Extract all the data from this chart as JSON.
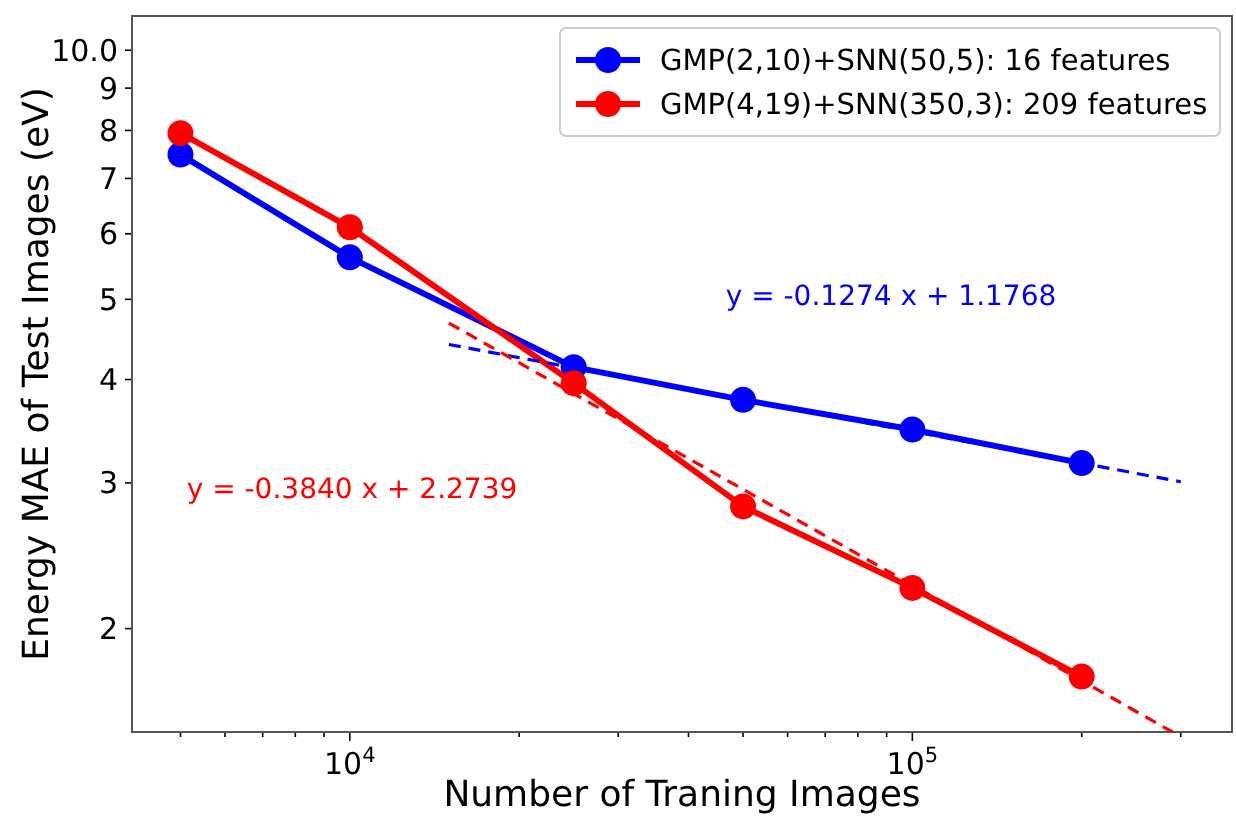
{
  "chart_data": {
    "type": "line",
    "xlabel": "Number of Traning Images",
    "ylabel": "Energy MAE of Test Images (eV)",
    "log": "xy",
    "grid": false,
    "legend": "top right",
    "marker": "circle",
    "line_style": "solid",
    "xlim": [
      4100,
      370000
    ],
    "ylim": [
      1.5,
      11.0
    ],
    "xticks": [
      {
        "value": 5000,
        "label": null
      },
      {
        "value": 6000,
        "label": null
      },
      {
        "value": 7000,
        "label": null
      },
      {
        "value": 8000,
        "label": null
      },
      {
        "value": 9000,
        "label": null
      },
      {
        "value": 10000,
        "label": "10$^{4}$"
      },
      {
        "value": 20000,
        "label": null
      },
      {
        "value": 30000,
        "label": null
      },
      {
        "value": 40000,
        "label": null
      },
      {
        "value": 50000,
        "label": null
      },
      {
        "value": 60000,
        "label": null
      },
      {
        "value": 70000,
        "label": null
      },
      {
        "value": 80000,
        "label": null
      },
      {
        "value": 90000,
        "label": null
      },
      {
        "value": 100000,
        "label": "10$^{5}$"
      },
      {
        "value": 200000,
        "label": null
      },
      {
        "value": 300000,
        "label": null
      }
    ],
    "yticks": [
      2,
      3,
      4,
      5,
      6,
      7,
      8,
      9,
      {
        "value": 10,
        "label": "10.0"
      }
    ],
    "series": [
      {
        "name": "GMP(2,10)+SNN(50,5): 16 features",
        "color": "#0000ff",
        "x": [
          5000,
          10000,
          25000,
          50000,
          100000,
          200000
        ],
        "values": [
          7.48,
          5.62,
          4.14,
          3.78,
          3.48,
          3.17
        ]
      },
      {
        "name": "GMP(4,19)+SNN(350,3): 209 features",
        "color": "#ff0000",
        "x": [
          5000,
          10000,
          25000,
          50000,
          100000,
          200000
        ],
        "values": [
          7.94,
          6.11,
          3.96,
          2.81,
          2.24,
          1.75
        ]
      },
      {
        "color": "#0000ff",
        "x": [
          15000,
          300000
        ],
        "values": [
          4.41,
          3.01
        ],
        "marker": "none",
        "line_style": "dashed"
      },
      {
        "color": "#ff0000",
        "x": [
          15000,
          290000
        ],
        "values": [
          4.68,
          1.5
        ],
        "marker": "none",
        "line_style": "dashed"
      }
    ],
    "annotations": [
      "y = -0.1274 x + 1.1768",
      "y = -0.3840 x + 2.2739"
    ]
  }
}
